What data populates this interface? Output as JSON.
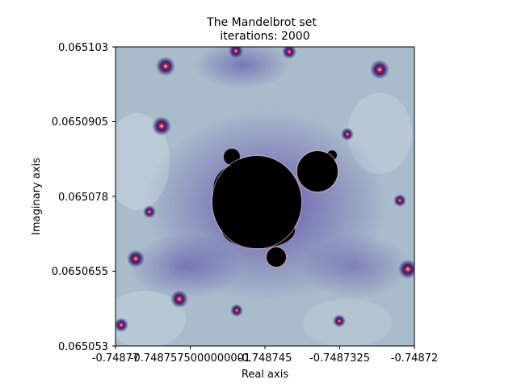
{
  "chart_data": {
    "type": "heatmap",
    "title_line1": "The Mandelbrot set",
    "title_line2": "iterations: 2000",
    "xlabel": "Real axis",
    "ylabel": "Imaginary axis",
    "xlim": [
      -0.74877,
      -0.74872
    ],
    "ylim": [
      0.065053,
      0.065103
    ],
    "x_tick_labels": [
      "-0.74877",
      "-0.7487575000000001",
      "-0.748745",
      "-0.7487325",
      "-0.74872"
    ],
    "y_tick_labels": [
      "0.065103",
      "0.0650905",
      "0.065078",
      "0.0650655",
      "0.065053"
    ],
    "iterations": 2000,
    "colormap": "twilight_shifted",
    "set_color": "#000000",
    "background_color": "#a9bccc",
    "grid": false,
    "legend": "none"
  }
}
